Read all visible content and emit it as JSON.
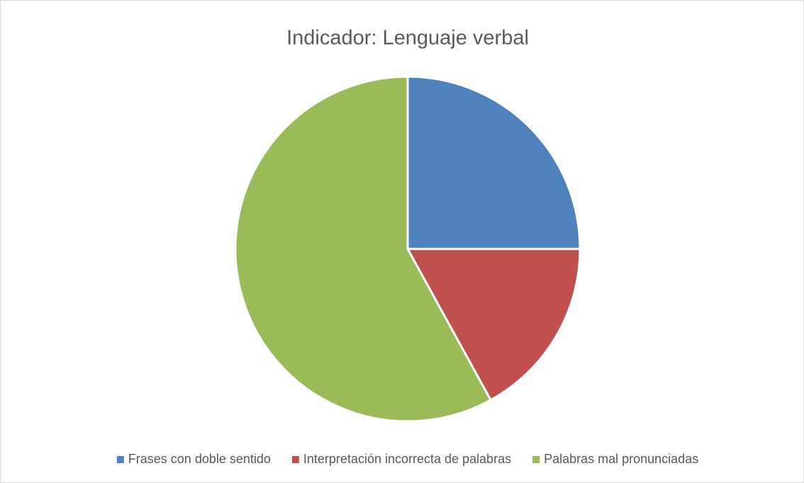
{
  "chart_data": {
    "type": "pie",
    "title": "Indicador: Lenguaje verbal",
    "categories": [
      "Frases con doble sentido",
      "Interpretación incorrecta de palabras",
      "Palabras mal pronunciadas"
    ],
    "values": [
      25,
      17,
      58
    ],
    "colors": [
      "#4f81bd",
      "#c0504d",
      "#9bbb59"
    ],
    "legend": "bottom"
  }
}
